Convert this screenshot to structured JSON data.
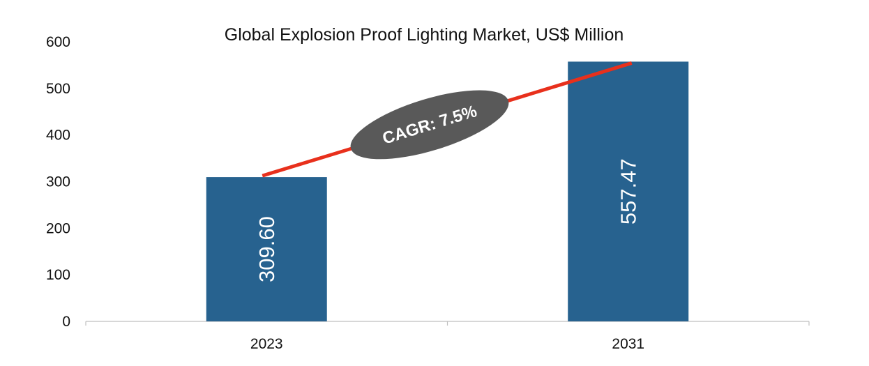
{
  "chart_data": {
    "type": "bar",
    "title": "Global Explosion Proof Lighting Market, US$ Million",
    "categories": [
      "2023",
      "2031"
    ],
    "values": [
      309.6,
      557.47
    ],
    "value_labels": [
      "309.60",
      "557.47"
    ],
    "ylim": [
      0,
      600
    ],
    "yticks": [
      0,
      100,
      200,
      300,
      400,
      500,
      600
    ],
    "xlabel": "",
    "ylabel": "",
    "grid": false,
    "legend": "none",
    "annotation": {
      "text": "CAGR: 7.5%"
    },
    "colors": {
      "bar": "#27628F",
      "trend_line": "#E8301C",
      "annotation_fill": "#595959",
      "annotation_text": "#FFFFFF",
      "axis": "#BFBFBF"
    }
  }
}
